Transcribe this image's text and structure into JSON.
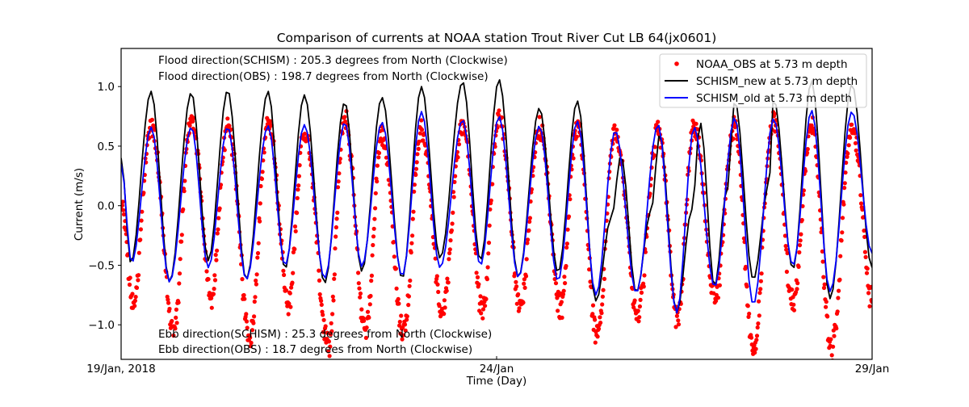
{
  "chart_data": {
    "type": "line",
    "title": "Comparison of currents at NOAA station Trout River Cut LB 64(jx0601)",
    "xlabel": "Time (Day)",
    "ylabel": "Current (m/s)",
    "xlim_days": [
      0,
      10
    ],
    "ylim": [
      -1.29,
      1.32
    ],
    "x_ticks": [
      {
        "day": 0,
        "label": "19/Jan, 2018"
      },
      {
        "day": 5,
        "label": "24/Jan"
      },
      {
        "day": 10,
        "label": "29/Jan"
      }
    ],
    "y_ticks": [
      {
        "value": 1.0,
        "label": "1.0"
      },
      {
        "value": 0.5,
        "label": "0.5"
      },
      {
        "value": 0.0,
        "label": "0.0"
      },
      {
        "value": -0.5,
        "label": "−0.5"
      },
      {
        "value": -1.0,
        "label": "−1.0"
      }
    ],
    "annotations": {
      "flood_schism": "Flood direction(SCHISM) : 205.3 degrees from North (Clockwise)",
      "flood_obs": "Flood direction(OBS) : 198.7 degrees from North (Clockwise)",
      "ebb_schism": "Ebb direction(SCHISM) : 25.3 degrees from North (Clockwise)",
      "ebb_obs": "Ebb direction(OBS) : 18.7 degrees from North (Clockwise)"
    },
    "legend_position": "top-right",
    "series": [
      {
        "name": "NOAA_OBS at 5.73 m depth",
        "style": "dots",
        "color": "#ff0000",
        "note": "extrema (day, m/s) of the observed series; dots are sampled between them",
        "extrema": [
          [
            0,
            0.0
          ],
          [
            0.16,
            -0.75
          ],
          [
            0.4,
            0.72
          ],
          [
            0.7,
            -0.98
          ],
          [
            0.935,
            0.78
          ],
          [
            1.2,
            -0.72
          ],
          [
            1.419,
            0.72
          ],
          [
            1.72,
            -1.05
          ],
          [
            1.957,
            0.75
          ],
          [
            2.23,
            -0.73
          ],
          [
            2.441,
            0.65
          ],
          [
            2.76,
            -1.1
          ],
          [
            2.978,
            0.78
          ],
          [
            3.26,
            -0.98
          ],
          [
            3.473,
            0.62
          ],
          [
            3.76,
            -1.0
          ],
          [
            4.0,
            0.68
          ],
          [
            4.28,
            -0.82
          ],
          [
            4.548,
            0.72
          ],
          [
            4.81,
            -0.8
          ],
          [
            5.032,
            0.8
          ],
          [
            5.32,
            -0.78
          ],
          [
            5.57,
            0.7
          ],
          [
            5.85,
            -0.8
          ],
          [
            6.075,
            0.72
          ],
          [
            6.34,
            -1.06
          ],
          [
            6.58,
            0.65
          ],
          [
            6.88,
            -0.85
          ],
          [
            7.15,
            0.68
          ],
          [
            7.41,
            -0.88
          ],
          [
            7.63,
            0.72
          ],
          [
            7.91,
            -0.72
          ],
          [
            8.17,
            0.72
          ],
          [
            8.42,
            -1.15
          ],
          [
            8.688,
            0.78
          ],
          [
            8.95,
            -0.78
          ],
          [
            9.194,
            0.72
          ],
          [
            9.46,
            -1.15
          ],
          [
            9.731,
            0.72
          ],
          [
            10.0,
            -0.72
          ]
        ]
      },
      {
        "name": "SCHISM_new at 5.73 m depth",
        "style": "line",
        "color": "#000000",
        "points": [
          [
            0,
            0.4
          ],
          [
            0.129,
            -0.48
          ],
          [
            0.398,
            0.96
          ],
          [
            0.645,
            -0.64
          ],
          [
            0.935,
            0.95
          ],
          [
            1.161,
            -0.46
          ],
          [
            1.419,
            0.97
          ],
          [
            1.667,
            -0.62
          ],
          [
            1.957,
            0.96
          ],
          [
            2.183,
            -0.53
          ],
          [
            2.441,
            0.93
          ],
          [
            2.71,
            -0.65
          ],
          [
            2.978,
            0.87
          ],
          [
            3.204,
            -0.55
          ],
          [
            3.473,
            0.91
          ],
          [
            3.742,
            -0.61
          ],
          [
            4.0,
            1.0
          ],
          [
            4.247,
            -0.44
          ],
          [
            4.548,
            1.04
          ],
          [
            4.785,
            -0.46
          ],
          [
            5.032,
            1.06
          ],
          [
            5.29,
            -0.6
          ],
          [
            5.57,
            0.82
          ],
          [
            5.817,
            -0.56
          ],
          [
            6.075,
            0.88
          ],
          [
            6.323,
            -0.8
          ],
          [
            6.527,
            -0.1
          ],
          [
            6.656,
            0.42
          ],
          [
            6.86,
            -0.73
          ],
          [
            7.054,
            -0.05
          ],
          [
            7.172,
            0.6
          ],
          [
            7.398,
            -0.9
          ],
          [
            7.602,
            -0.03
          ],
          [
            7.71,
            0.7
          ],
          [
            7.903,
            -0.68
          ],
          [
            8.065,
            0.12
          ],
          [
            8.172,
            0.88
          ],
          [
            8.419,
            -0.62
          ],
          [
            8.624,
            0.17
          ],
          [
            8.688,
            0.9
          ],
          [
            8.946,
            -0.53
          ],
          [
            9.194,
            1.05
          ],
          [
            9.441,
            -0.78
          ],
          [
            9.731,
            1.02
          ],
          [
            10.0,
            -0.52
          ]
        ]
      },
      {
        "name": "SCHISM_old at 5.73 m depth",
        "style": "line",
        "color": "#0000ff",
        "points": [
          [
            0,
            0.35
          ],
          [
            0.14,
            -0.48
          ],
          [
            0.4,
            0.66
          ],
          [
            0.645,
            -0.64
          ],
          [
            0.935,
            0.66
          ],
          [
            1.161,
            -0.52
          ],
          [
            1.419,
            0.66
          ],
          [
            1.667,
            -0.62
          ],
          [
            1.957,
            0.67
          ],
          [
            2.183,
            -0.5
          ],
          [
            2.441,
            0.68
          ],
          [
            2.71,
            -0.61
          ],
          [
            2.978,
            0.7
          ],
          [
            3.204,
            -0.51
          ],
          [
            3.473,
            0.7
          ],
          [
            3.742,
            -0.59
          ],
          [
            4.0,
            0.79
          ],
          [
            4.247,
            -0.52
          ],
          [
            4.548,
            0.72
          ],
          [
            4.785,
            -0.5
          ],
          [
            5.032,
            0.75
          ],
          [
            5.29,
            -0.6
          ],
          [
            5.57,
            0.67
          ],
          [
            5.817,
            -0.63
          ],
          [
            6.075,
            0.71
          ],
          [
            6.323,
            -0.75
          ],
          [
            6.58,
            0.63
          ],
          [
            6.86,
            -0.73
          ],
          [
            7.15,
            0.68
          ],
          [
            7.398,
            -0.9
          ],
          [
            7.63,
            0.66
          ],
          [
            7.903,
            -0.68
          ],
          [
            8.17,
            0.74
          ],
          [
            8.419,
            -0.83
          ],
          [
            8.688,
            0.73
          ],
          [
            8.946,
            -0.5
          ],
          [
            9.194,
            0.8
          ],
          [
            9.441,
            -0.72
          ],
          [
            9.731,
            0.79
          ],
          [
            10.0,
            -0.4
          ]
        ]
      }
    ]
  }
}
